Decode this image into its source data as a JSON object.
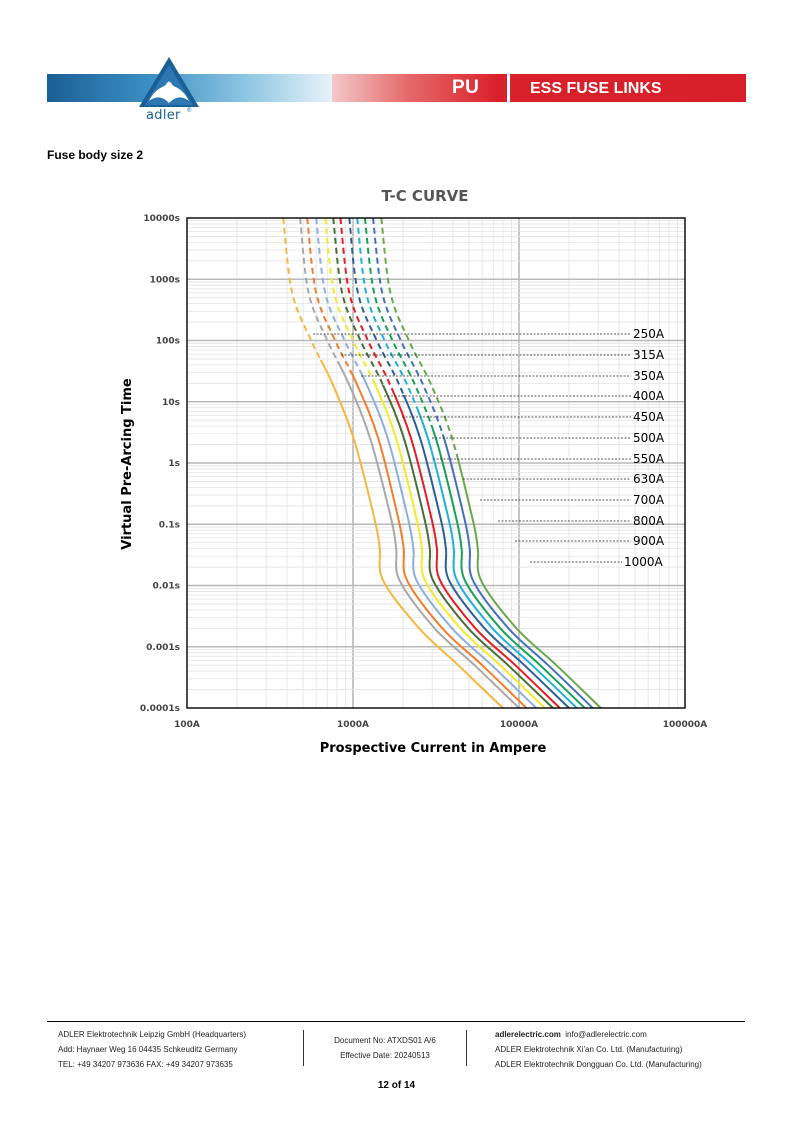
{
  "header": {
    "brand": "adler",
    "product_code": "PU",
    "product_line": "ESS FUSE LINKS",
    "colors": {
      "blue": "#1a5f95",
      "red": "#d71f29"
    }
  },
  "section_title": "Fuse body size 2",
  "chart_data": {
    "type": "line",
    "title": "T-C CURVE",
    "xlabel": "Prospective Current in Ampere",
    "ylabel": "Virtual Pre-Arcing Time",
    "x_scale": "log",
    "y_scale": "log",
    "xlim": [
      100,
      100000
    ],
    "ylim": [
      0.0001,
      10000
    ],
    "x_ticks": [
      "100A",
      "1000A",
      "10000A",
      "100000A"
    ],
    "y_ticks": [
      "10000s",
      "1000s",
      "100s",
      "10s",
      "1s",
      "0.1s",
      "0.01s",
      "0.001s",
      "0.0001s"
    ],
    "grid": true,
    "legend": "right, leader lines to curves",
    "note": "upper portions of each curve drawn dashed",
    "series": [
      {
        "name": "250A",
        "color": "#f6b73f",
        "points": [
          [
            380,
            10000
          ],
          [
            430,
            600
          ],
          [
            560,
            100
          ],
          [
            750,
            20
          ],
          [
            1010,
            2.5
          ],
          [
            1350,
            0.12
          ],
          [
            1450,
            0.04
          ],
          [
            1520,
            0.012
          ],
          [
            2500,
            0.002
          ],
          [
            4300,
            0.0005
          ],
          [
            8000,
            0.0001
          ]
        ]
      },
      {
        "name": "315A",
        "color": "#a8a8a8",
        "points": [
          [
            480,
            10000
          ],
          [
            540,
            600
          ],
          [
            700,
            100
          ],
          [
            940,
            20
          ],
          [
            1270,
            2.5
          ],
          [
            1700,
            0.12
          ],
          [
            1820,
            0.04
          ],
          [
            1910,
            0.012
          ],
          [
            3100,
            0.002
          ],
          [
            5400,
            0.0005
          ],
          [
            10000,
            0.0001
          ]
        ]
      },
      {
        "name": "350A",
        "color": "#ef7f2f",
        "points": [
          [
            530,
            10000
          ],
          [
            600,
            600
          ],
          [
            780,
            100
          ],
          [
            1050,
            20
          ],
          [
            1420,
            2.5
          ],
          [
            1880,
            0.12
          ],
          [
            2020,
            0.04
          ],
          [
            2120,
            0.012
          ],
          [
            3450,
            0.002
          ],
          [
            6000,
            0.0005
          ],
          [
            11100,
            0.0001
          ]
        ]
      },
      {
        "name": "400A",
        "color": "#8eafdc",
        "points": [
          [
            600,
            10000
          ],
          [
            680,
            600
          ],
          [
            890,
            100
          ],
          [
            1200,
            20
          ],
          [
            1620,
            2.5
          ],
          [
            2150,
            0.12
          ],
          [
            2310,
            0.04
          ],
          [
            2420,
            0.012
          ],
          [
            3950,
            0.002
          ],
          [
            6850,
            0.0005
          ],
          [
            12700,
            0.0001
          ]
        ]
      },
      {
        "name": "450A",
        "color": "#f4ea2c",
        "points": [
          [
            680,
            10000
          ],
          [
            770,
            600
          ],
          [
            1000,
            100
          ],
          [
            1350,
            20
          ],
          [
            1820,
            2.5
          ],
          [
            2420,
            0.12
          ],
          [
            2600,
            0.04
          ],
          [
            2720,
            0.012
          ],
          [
            4440,
            0.002
          ],
          [
            7700,
            0.0005
          ],
          [
            14300,
            0.0001
          ]
        ]
      },
      {
        "name": "500A",
        "color": "#4a6e38",
        "points": [
          [
            760,
            10000
          ],
          [
            860,
            600
          ],
          [
            1110,
            100
          ],
          [
            1500,
            20
          ],
          [
            2030,
            2.5
          ],
          [
            2700,
            0.12
          ],
          [
            2900,
            0.04
          ],
          [
            3040,
            0.012
          ],
          [
            4950,
            0.002
          ],
          [
            8600,
            0.0005
          ],
          [
            16000,
            0.0001
          ]
        ]
      },
      {
        "name": "550A",
        "color": "#e31e24",
        "points": [
          [
            840,
            10000
          ],
          [
            950,
            600
          ],
          [
            1230,
            100
          ],
          [
            1660,
            20
          ],
          [
            2240,
            2.5
          ],
          [
            2980,
            0.12
          ],
          [
            3200,
            0.04
          ],
          [
            3350,
            0.012
          ],
          [
            5460,
            0.002
          ],
          [
            9500,
            0.0005
          ],
          [
            17600,
            0.0001
          ]
        ]
      },
      {
        "name": "630A",
        "color": "#2f5f94",
        "points": [
          [
            950,
            10000
          ],
          [
            1070,
            600
          ],
          [
            1390,
            100
          ],
          [
            1880,
            20
          ],
          [
            2540,
            2.5
          ],
          [
            3380,
            0.12
          ],
          [
            3630,
            0.04
          ],
          [
            3800,
            0.012
          ],
          [
            6200,
            0.002
          ],
          [
            10780,
            0.0005
          ],
          [
            20000,
            0.0001
          ]
        ]
      },
      {
        "name": "700A",
        "color": "#22b0d8",
        "points": [
          [
            1060,
            10000
          ],
          [
            1200,
            600
          ],
          [
            1550,
            100
          ],
          [
            2100,
            20
          ],
          [
            2830,
            2.5
          ],
          [
            3770,
            0.12
          ],
          [
            4050,
            0.04
          ],
          [
            4240,
            0.012
          ],
          [
            6910,
            0.002
          ],
          [
            12000,
            0.0005
          ],
          [
            22300,
            0.0001
          ]
        ]
      },
      {
        "name": "800A",
        "color": "#18a05a",
        "points": [
          [
            1180,
            10000
          ],
          [
            1340,
            600
          ],
          [
            1730,
            100
          ],
          [
            2340,
            20
          ],
          [
            3160,
            2.5
          ],
          [
            4200,
            0.12
          ],
          [
            4510,
            0.04
          ],
          [
            4730,
            0.012
          ],
          [
            7710,
            0.002
          ],
          [
            13400,
            0.0005
          ],
          [
            24900,
            0.0001
          ]
        ]
      },
      {
        "name": "900A",
        "color": "#4471b8",
        "points": [
          [
            1320,
            10000
          ],
          [
            1500,
            600
          ],
          [
            1940,
            100
          ],
          [
            2620,
            20
          ],
          [
            3540,
            2.5
          ],
          [
            4700,
            0.12
          ],
          [
            5050,
            0.04
          ],
          [
            5290,
            0.012
          ],
          [
            8630,
            0.002
          ],
          [
            15000,
            0.0005
          ],
          [
            27800,
            0.0001
          ]
        ]
      },
      {
        "name": "1000A",
        "color": "#6aa84f",
        "points": [
          [
            1480,
            10000
          ],
          [
            1680,
            600
          ],
          [
            2170,
            100
          ],
          [
            2930,
            20
          ],
          [
            3960,
            2.5
          ],
          [
            5260,
            0.12
          ],
          [
            5650,
            0.04
          ],
          [
            5920,
            0.012
          ],
          [
            9660,
            0.002
          ],
          [
            16800,
            0.0005
          ],
          [
            31100,
            0.0001
          ]
        ]
      }
    ]
  },
  "footer": {
    "company": "ADLER Elektrotechnik Leipzig GmbH (Headquarters)",
    "address": "Add:   Haynaer Weg 16 04435 Schkeuditz Germany",
    "phone": "TEL: +49 34207 973636    FAX: +49 34207 973635",
    "doc_no": "Document No: ATXDS01 A/6",
    "eff_date": "Effective Date: 20240513",
    "website": "adlerelectric.com",
    "email": "info@adlerelectric.com",
    "mfg1": "ADLER Elektrotechnik Xi'an Co. Ltd. (Manufacturing)",
    "mfg2": "ADLER Elektrotechnik Dongguan Co. Ltd. (Manufacturing)",
    "page": "12 of 14"
  }
}
